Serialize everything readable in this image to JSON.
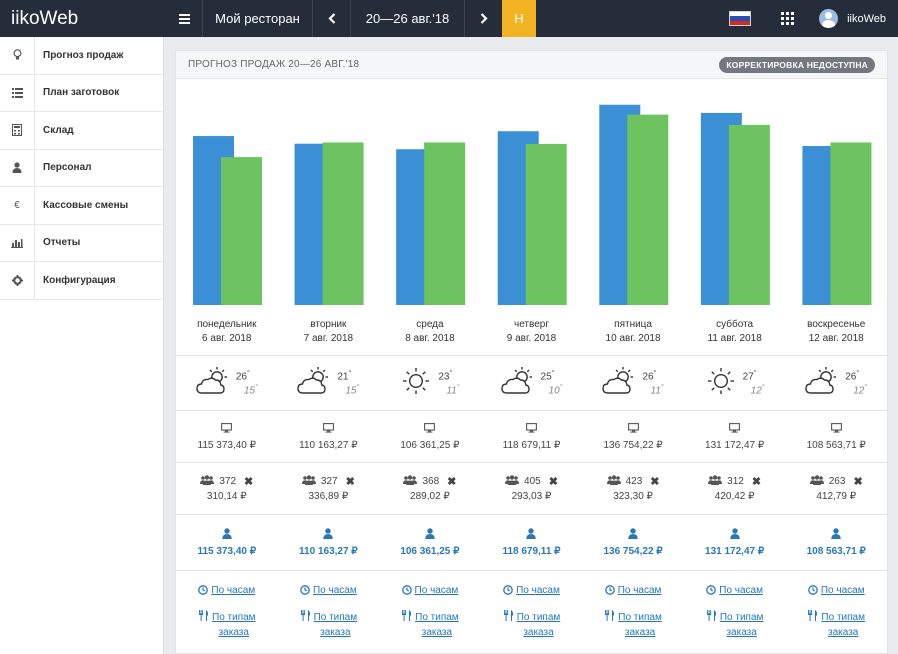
{
  "app": {
    "title": "iikoWeb"
  },
  "topbar": {
    "restaurant": "Мой ресторан",
    "date_range": "20—26 авг.'18",
    "h_button": "Н",
    "user": "iikoWeb"
  },
  "sidebar": {
    "items": [
      {
        "label": "Прогноз продаж",
        "icon": "lightbulb-icon"
      },
      {
        "label": "План заготовок",
        "icon": "list-icon"
      },
      {
        "label": "Склад",
        "icon": "calculator-icon"
      },
      {
        "label": "Персонал",
        "icon": "user-icon"
      },
      {
        "label": "Кассовые смены",
        "icon": "euro-icon"
      },
      {
        "label": "Отчеты",
        "icon": "bar-chart-icon"
      },
      {
        "label": "Конфигурация",
        "icon": "gear-icon"
      }
    ]
  },
  "panel": {
    "title": "ПРОГНОЗ ПРОДАЖ 20—26 АВГ.'18",
    "badge": "КОРРЕКТИРОВКА НЕДОСТУПНА"
  },
  "labels": {
    "hourly": "По часам",
    "by_order_type_1": "По типам",
    "by_order_type_2": "заказа"
  },
  "colors": {
    "bar_blue": "#3a8fd5",
    "bar_green": "#6cc35f",
    "accent": "#f2b322",
    "topbar": "#262d3a"
  },
  "chart_data": {
    "type": "bar",
    "categories": [
      "понедельник",
      "вторник",
      "среда",
      "четверг",
      "пятница",
      "суббота",
      "воскресенье"
    ],
    "series": [
      {
        "values": [
          115373,
          110163,
          106361,
          118679,
          136754,
          131172,
          108564
        ]
      },
      {
        "values": [
          101000,
          111000,
          111000,
          110000,
          130000,
          123000,
          111000
        ]
      }
    ],
    "ylim": [
      0,
      140000
    ],
    "grid": false
  },
  "days": [
    {
      "name": "понедельник",
      "date": "6 авг. 2018",
      "weather": "partly-cloudy-icon",
      "t_hi": "26",
      "t_lo": "15",
      "sales": "115 373,40 ₽",
      "guests": "372",
      "avg_check": "310,14 ₽",
      "total": "115 373,40 ₽"
    },
    {
      "name": "вторник",
      "date": "7 авг. 2018",
      "weather": "partly-cloudy-icon",
      "t_hi": "21",
      "t_lo": "15",
      "sales": "110 163,27 ₽",
      "guests": "327",
      "avg_check": "336,89 ₽",
      "total": "110 163,27 ₽"
    },
    {
      "name": "среда",
      "date": "8 авг. 2018",
      "weather": "sun-icon",
      "t_hi": "23",
      "t_lo": "11",
      "sales": "106 361,25 ₽",
      "guests": "368",
      "avg_check": "289,02 ₽",
      "total": "106 361,25 ₽"
    },
    {
      "name": "четверг",
      "date": "9 авг. 2018",
      "weather": "partly-cloudy-icon",
      "t_hi": "25",
      "t_lo": "10",
      "sales": "118 679,11 ₽",
      "guests": "405",
      "avg_check": "293,03 ₽",
      "total": "118 679,11 ₽"
    },
    {
      "name": "пятница",
      "date": "10 авг. 2018",
      "weather": "partly-cloudy-icon",
      "t_hi": "26",
      "t_lo": "11",
      "sales": "136 754,22 ₽",
      "guests": "423",
      "avg_check": "323,30 ₽",
      "total": "136 754,22 ₽"
    },
    {
      "name": "суббота",
      "date": "11 авг. 2018",
      "weather": "sun-icon",
      "t_hi": "27",
      "t_lo": "12",
      "sales": "131 172,47 ₽",
      "guests": "312",
      "avg_check": "420,42 ₽",
      "total": "131 172,47 ₽"
    },
    {
      "name": "воскресенье",
      "date": "12 авг. 2018",
      "weather": "partly-cloudy-icon",
      "t_hi": "26",
      "t_lo": "12",
      "sales": "108 563,71 ₽",
      "guests": "263",
      "avg_check": "412,79 ₽",
      "total": "108 563,71 ₽"
    }
  ]
}
